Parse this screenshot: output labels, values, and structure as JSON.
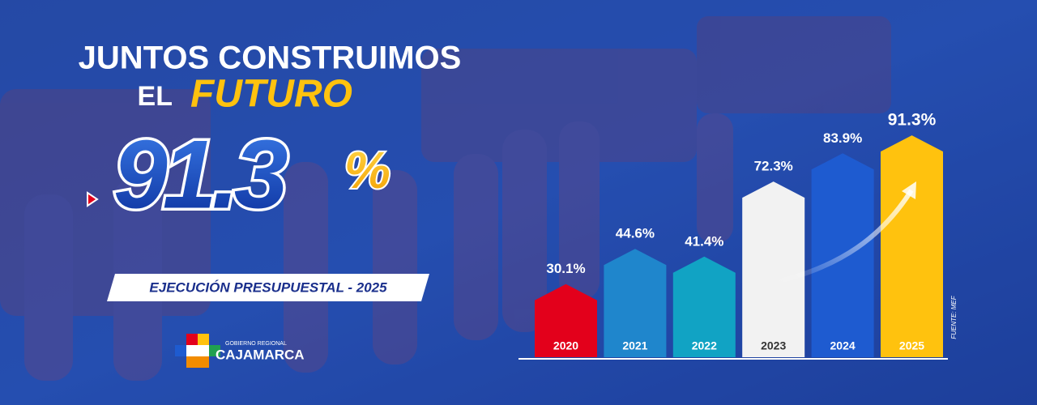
{
  "header": {
    "line1": "JUNTOS CONSTRUIMOS",
    "line2_prefix": "EL",
    "line2_highlight": "FUTURO",
    "headline_value": "91.3",
    "headline_unit": "%",
    "badge": "EJECUCIÓN PRESUPUESTAL - 2025"
  },
  "logo": {
    "top": "GOBIERNO REGIONAL",
    "name": "CAJAMARCA"
  },
  "source": "FUENTE: MEF",
  "chart_data": {
    "type": "bar",
    "categories": [
      "2020",
      "2021",
      "2022",
      "2023",
      "2024",
      "2025"
    ],
    "values": [
      30.1,
      44.6,
      41.4,
      72.3,
      83.9,
      91.3
    ],
    "value_labels": [
      "30.1%",
      "44.6%",
      "41.4%",
      "72.3%",
      "83.9%",
      "91.3%"
    ],
    "colors": [
      "#e3001b",
      "#1f86cc",
      "#11a3c4",
      "#f2f2f2",
      "#1e5bd0",
      "#ffc20e"
    ]
  }
}
